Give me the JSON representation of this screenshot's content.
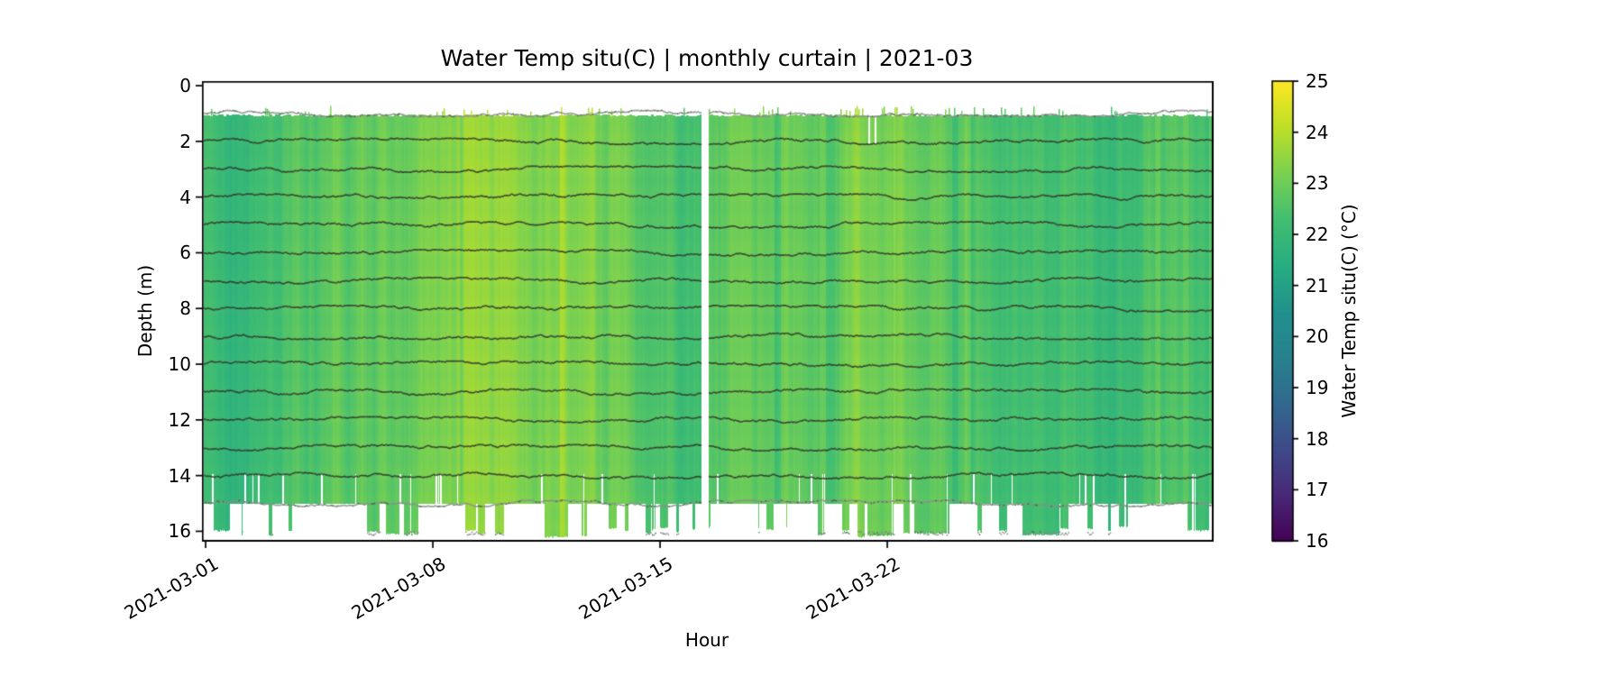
{
  "figure": {
    "background": "#ffffff",
    "text_color": "#000000"
  },
  "chart_data": {
    "type": "heatmap",
    "title": "Water Temp situ(C) | monthly curtain | 2021-03",
    "xlabel": "Hour",
    "ylabel": "Depth (m)",
    "month": "2021-03",
    "x_ticks": [
      {
        "day": 1,
        "label": "2021-03-01"
      },
      {
        "day": 8,
        "label": "2021-03-08"
      },
      {
        "day": 15,
        "label": "2021-03-15"
      },
      {
        "day": 22,
        "label": "2021-03-22"
      }
    ],
    "y_ticks": [
      {
        "depth": 0,
        "label": "0"
      },
      {
        "depth": 2,
        "label": "2"
      },
      {
        "depth": 4,
        "label": "4"
      },
      {
        "depth": 6,
        "label": "6"
      },
      {
        "depth": 8,
        "label": "8"
      },
      {
        "depth": 10,
        "label": "10"
      },
      {
        "depth": 12,
        "label": "12"
      },
      {
        "depth": 14,
        "label": "14"
      },
      {
        "depth": 16,
        "label": "16"
      }
    ],
    "xlim_days": [
      0.9,
      32.0
    ],
    "ylim_m": [
      16.3,
      -0.16
    ],
    "depth_top_m": 1.0,
    "depth_bottom_main_m": 15.0,
    "depth_bottom_max_m": 16.2,
    "sensor_depths_m": [
      1,
      2,
      3,
      4,
      5,
      6,
      7,
      8,
      9,
      10,
      11,
      12,
      13,
      14,
      15,
      16
    ],
    "gap_days": [
      16.28,
      16.47
    ],
    "dropout_lines_days": [
      21.42,
      21.61
    ],
    "daily_mean_temp_c": [
      22.4,
      22.1,
      22.5,
      22.7,
      22.9,
      23.0,
      23.1,
      23.4,
      23.8,
      23.7,
      23.5,
      23.6,
      23.2,
      22.9,
      22.7,
      22.5,
      22.9,
      23.0,
      23.0,
      22.9,
      23.3,
      23.5,
      22.9,
      22.6,
      22.4,
      22.6,
      22.2,
      22.3,
      22.1,
      22.5,
      22.4
    ],
    "colorbar": {
      "label": "Water Temp situ(C) (°C)",
      "min": 16,
      "max": 25,
      "ticks": [
        "16",
        "17",
        "18",
        "19",
        "20",
        "21",
        "22",
        "23",
        "24",
        "25"
      ],
      "colormap": "viridis",
      "viridis_stops": [
        "#440154",
        "#482878",
        "#3e4a89",
        "#31688e",
        "#26828e",
        "#21918c",
        "#27ad81",
        "#42be71",
        "#7ad151",
        "#bddf26",
        "#fde725"
      ]
    },
    "trace_colors": {
      "mid_depth_sensor": "#2f3c2e",
      "surface_and_bottom_sensor": "#8f8f8f"
    }
  }
}
